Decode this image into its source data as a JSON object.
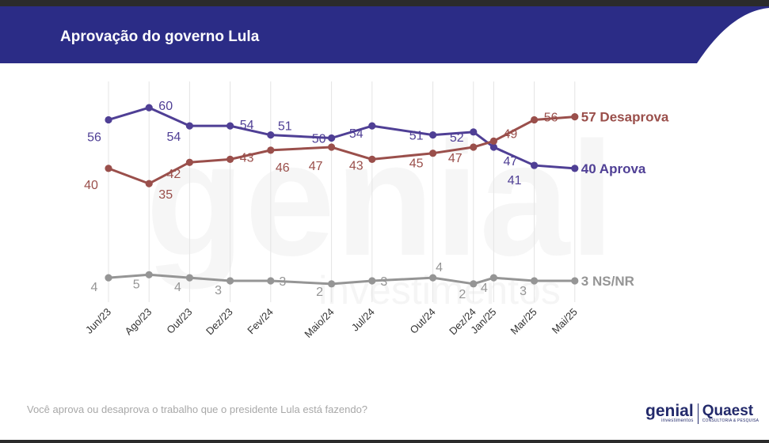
{
  "header": {
    "title": "Aprovação do governo Lula"
  },
  "footer": {
    "question": "Você aprova ou desaprova o trabalho que o presidente Lula está fazendo?"
  },
  "logos": {
    "genial": "genial",
    "genial_sub": "investimentos",
    "quaest": "Quaest",
    "quaest_sub": "CONSULTORIA & PESQUISA"
  },
  "watermark": {
    "line1": "genial",
    "line2": "investimentos"
  },
  "colors": {
    "header_bg": "#2b2c86",
    "aprova": "#4f3f95",
    "desaprova": "#9a4f4b",
    "ns_nr": "#959595"
  },
  "chart_data": {
    "type": "line",
    "categories": [
      "Jun/23",
      "Ago/23",
      "Out/23",
      "Dez/23",
      "Fev/24",
      "Maio/24",
      "Jul/24",
      "Out/24",
      "Dez/24",
      "Jan/25",
      "Mar/25",
      "Mai/25"
    ],
    "x_positions": [
      0,
      2,
      4,
      6,
      8,
      11,
      13,
      16,
      18,
      19,
      21,
      23
    ],
    "series": [
      {
        "name": "Aprova",
        "end_label": "40 Aprova",
        "color": "#4f3f95",
        "values": [
          56,
          60,
          54,
          54,
          51,
          50,
          54,
          51,
          52,
          47,
          41,
          40
        ]
      },
      {
        "name": "Desaprova",
        "end_label": "57 Desaprova",
        "color": "#9a4f4b",
        "values": [
          40,
          35,
          42,
          43,
          46,
          47,
          43,
          45,
          47,
          49,
          56,
          57
        ]
      },
      {
        "name": "NS/NR",
        "end_label": "3 NS/NR",
        "color": "#959595",
        "values": [
          4,
          5,
          4,
          3,
          3,
          2,
          3,
          4,
          2,
          4,
          3,
          3
        ]
      }
    ],
    "grid": "vertical"
  }
}
